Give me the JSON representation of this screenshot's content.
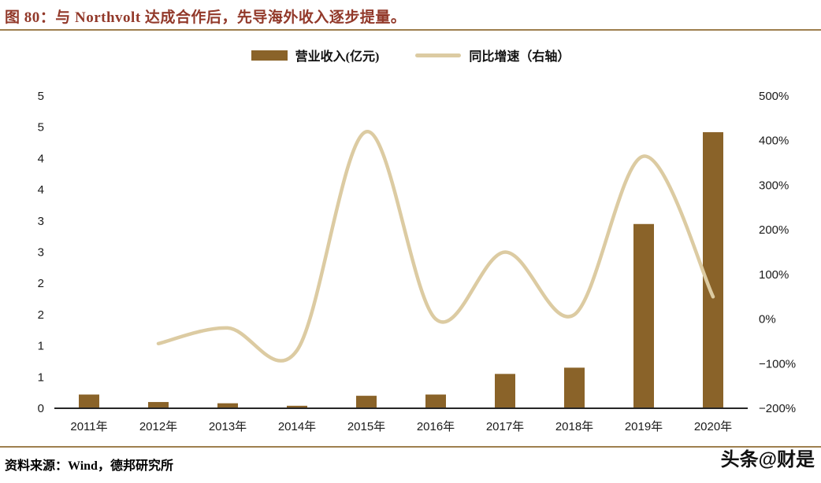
{
  "figure": {
    "title": "图 80：与 Northvolt 达成合作后，先导海外收入逐步提量。",
    "source": "资料来源：Wind，德邦研究所",
    "watermark": "头条@财是"
  },
  "legend": {
    "bar_label": "营业收入(亿元)",
    "line_label": "同比增速（右轴）"
  },
  "colors": {
    "title_text": "#92392a",
    "divider": "#9e7f4e",
    "bar": "#8a6329",
    "line": "#dccba2",
    "axis_text": "#1a1a1a",
    "baseline": "#262626",
    "watermark": "#111111"
  },
  "chart_data": {
    "type": "bar",
    "title": "图 80：与 Northvolt 达成合作后，先导海外收入逐步提量。",
    "categories": [
      "2011年",
      "2012年",
      "2013年",
      "2014年",
      "2015年",
      "2016年",
      "2017年",
      "2018年",
      "2019年",
      "2020年"
    ],
    "series": [
      {
        "name": "营业收入(亿元)",
        "type": "bar",
        "axis": "left",
        "values": [
          0.22,
          0.1,
          0.08,
          0.04,
          0.2,
          0.22,
          0.55,
          0.65,
          2.95,
          4.42
        ]
      },
      {
        "name": "同比增速（右轴）",
        "type": "line",
        "axis": "right",
        "values": [
          null,
          -55,
          -20,
          -70,
          420,
          0,
          150,
          10,
          365,
          50
        ]
      }
    ],
    "left_axis": {
      "min": 0,
      "max": 5,
      "tick_labels_top_to_bottom": [
        "5",
        "5",
        "4",
        "4",
        "3",
        "3",
        "2",
        "2",
        "1",
        "1",
        "0"
      ]
    },
    "right_axis": {
      "min": -200,
      "max": 500,
      "tick_labels_top_to_bottom": [
        "500%",
        "400%",
        "300%",
        "200%",
        "100%",
        "0%",
        "−100%",
        "−200%"
      ]
    },
    "legend_position": "top",
    "grid": false
  }
}
